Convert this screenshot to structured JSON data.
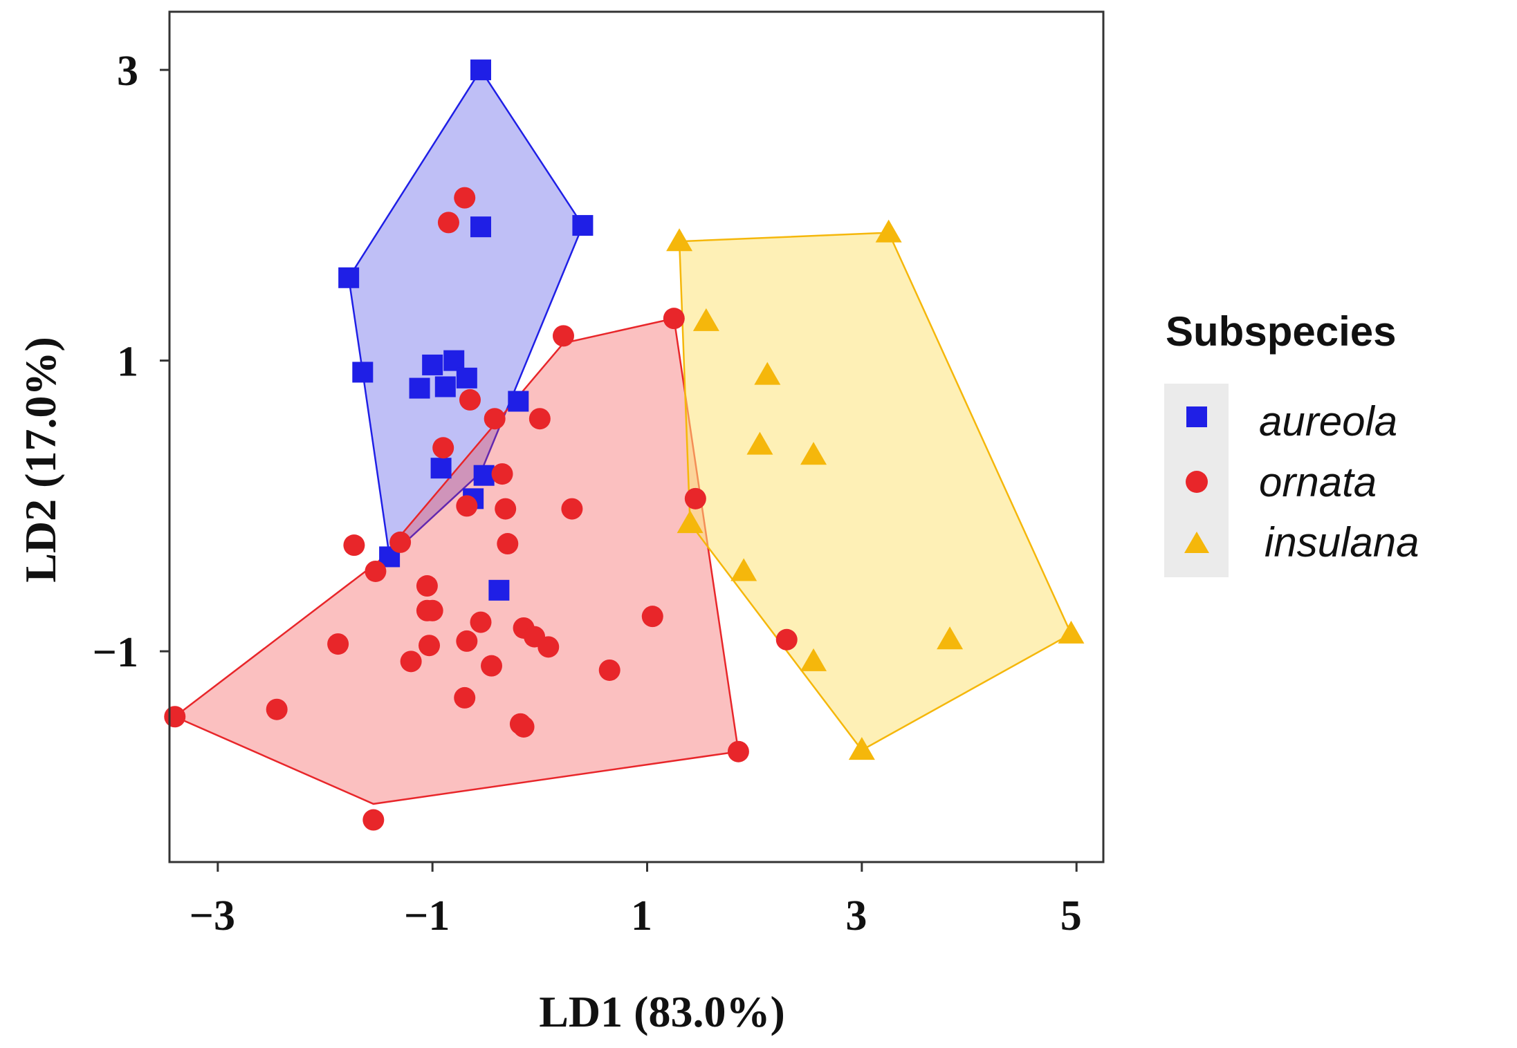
{
  "chart_data": {
    "type": "scatter",
    "title": "",
    "xlabel": "LD1 (83.0%)",
    "ylabel": "LD2 (17.0%)",
    "xlim": [
      -3.45,
      5.25
    ],
    "ylim": [
      -2.45,
      3.4
    ],
    "xticks": [
      -3,
      -1,
      1,
      3,
      5
    ],
    "yticks": [
      3,
      1,
      -1
    ],
    "tick_labels": {
      "x": [
        "−3",
        "−1",
        "1",
        "3",
        "5"
      ],
      "y": [
        "3",
        "1",
        "−1"
      ]
    },
    "grid": false,
    "legend": {
      "title": "Subspecies",
      "position": "right"
    },
    "series": [
      {
        "name": "aureola",
        "marker": "square",
        "color": "#1f1fe6",
        "fill": "#2b2be0",
        "fill_opacity": 0.3,
        "points": [
          [
            -0.55,
            3.0
          ],
          [
            0.4,
            1.93
          ],
          [
            -1.78,
            1.57
          ],
          [
            -0.55,
            1.92
          ],
          [
            -1.65,
            0.92
          ],
          [
            -0.8,
            1.0
          ],
          [
            -1.0,
            0.97
          ],
          [
            -0.88,
            0.82
          ],
          [
            -1.12,
            0.81
          ],
          [
            -0.68,
            0.88
          ],
          [
            -0.2,
            0.72
          ],
          [
            -0.92,
            0.26
          ],
          [
            -0.52,
            0.21
          ],
          [
            -0.62,
            0.05
          ],
          [
            -1.4,
            -0.35
          ],
          [
            -0.38,
            -0.58
          ]
        ],
        "hull": [
          [
            -0.55,
            3.0
          ],
          [
            0.4,
            1.93
          ],
          [
            -0.55,
            0.23
          ],
          [
            -1.4,
            -0.35
          ],
          [
            -1.65,
            0.92
          ],
          [
            -1.78,
            1.57
          ]
        ]
      },
      {
        "name": "ornata",
        "marker": "circle",
        "color": "#e8262a",
        "fill": "#f33a3a",
        "fill_opacity": 0.32,
        "points": [
          [
            -0.7,
            2.12
          ],
          [
            -0.85,
            1.95
          ],
          [
            1.25,
            1.29
          ],
          [
            0.22,
            1.17
          ],
          [
            -0.65,
            0.73
          ],
          [
            0.0,
            0.6
          ],
          [
            -0.42,
            0.6
          ],
          [
            -0.9,
            0.4
          ],
          [
            -0.35,
            0.22
          ],
          [
            -0.68,
            0.0
          ],
          [
            -0.32,
            -0.02
          ],
          [
            0.3,
            -0.02
          ],
          [
            1.45,
            0.05
          ],
          [
            -1.3,
            -0.25
          ],
          [
            -1.73,
            -0.27
          ],
          [
            -0.3,
            -0.26
          ],
          [
            -1.53,
            -0.45
          ],
          [
            -1.05,
            -0.55
          ],
          [
            -1.05,
            -0.72
          ],
          [
            -1.0,
            -0.72
          ],
          [
            -0.55,
            -0.8
          ],
          [
            -0.15,
            -0.84
          ],
          [
            1.05,
            -0.76
          ],
          [
            -0.05,
            -0.9
          ],
          [
            -0.68,
            -0.93
          ],
          [
            0.08,
            -0.97
          ],
          [
            -1.03,
            -0.96
          ],
          [
            -1.88,
            -0.95
          ],
          [
            2.3,
            -0.92
          ],
          [
            -1.2,
            -1.07
          ],
          [
            -0.45,
            -1.1
          ],
          [
            0.65,
            -1.13
          ],
          [
            -0.7,
            -1.32
          ],
          [
            -2.45,
            -1.4
          ],
          [
            -3.4,
            -1.45
          ],
          [
            -0.18,
            -1.5
          ],
          [
            -0.15,
            -1.52
          ],
          [
            1.85,
            -1.69
          ],
          [
            -1.55,
            -2.16
          ]
        ],
        "hull": [
          [
            1.25,
            1.29
          ],
          [
            1.85,
            -1.69
          ],
          [
            -1.55,
            -2.05
          ],
          [
            -3.4,
            -1.45
          ],
          [
            -1.5,
            -0.38
          ],
          [
            0.22,
            1.12
          ]
        ]
      },
      {
        "name": "insulana",
        "marker": "triangle",
        "color": "#f5b70b",
        "fill": "#fde37a",
        "fill_opacity": 0.55,
        "points": [
          [
            1.3,
            1.82
          ],
          [
            3.25,
            1.88
          ],
          [
            1.55,
            1.27
          ],
          [
            2.12,
            0.9
          ],
          [
            2.05,
            0.42
          ],
          [
            2.55,
            0.35
          ],
          [
            1.4,
            -0.12
          ],
          [
            1.9,
            -0.45
          ],
          [
            3.82,
            -0.92
          ],
          [
            4.95,
            -0.88
          ],
          [
            2.55,
            -1.07
          ],
          [
            3.0,
            -1.68
          ]
        ],
        "hull": [
          [
            1.3,
            1.82
          ],
          [
            3.25,
            1.88
          ],
          [
            4.95,
            -0.88
          ],
          [
            3.0,
            -1.68
          ],
          [
            1.4,
            -0.12
          ]
        ]
      }
    ]
  }
}
